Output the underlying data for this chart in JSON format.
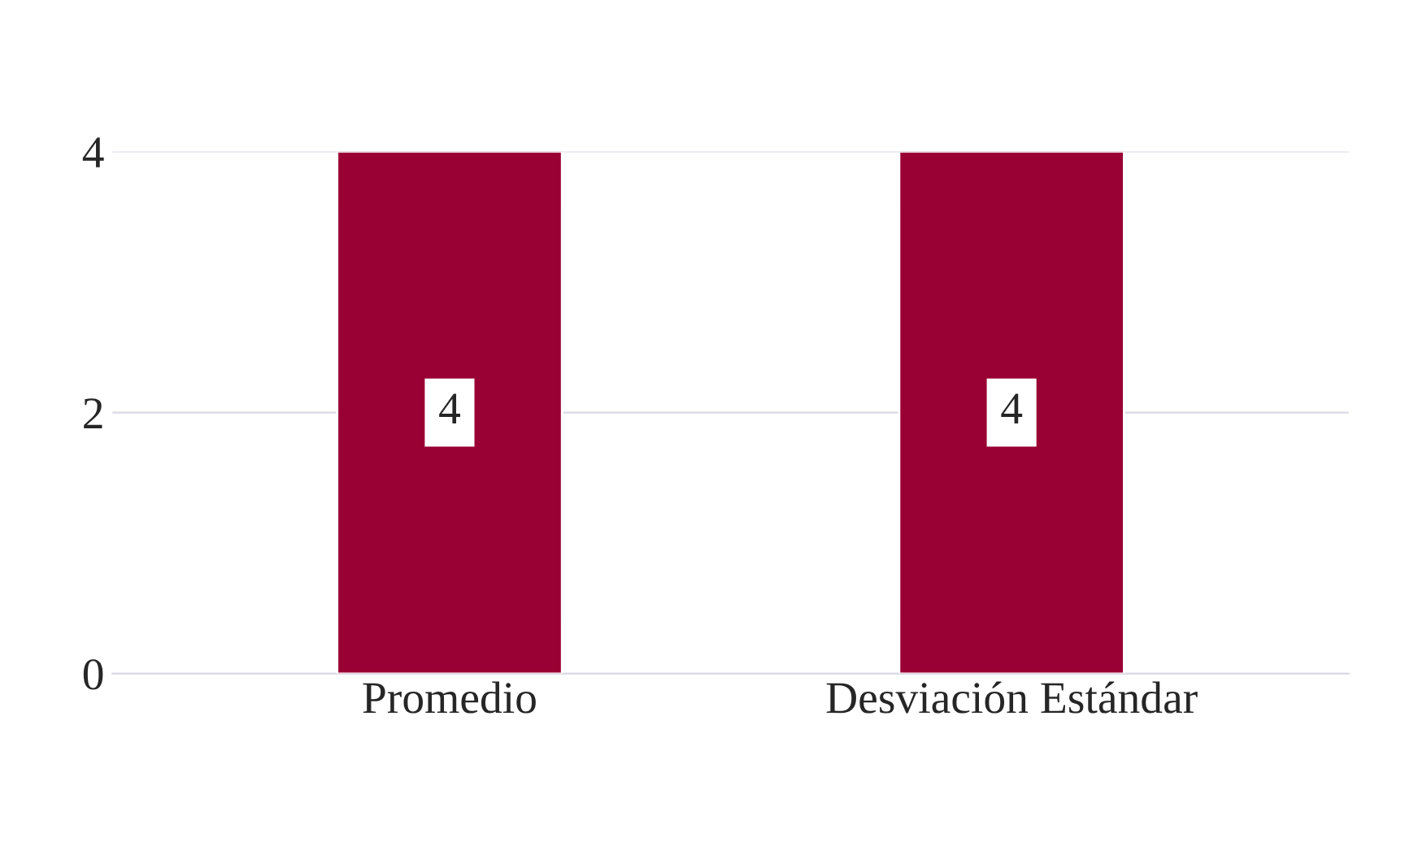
{
  "chart_data": {
    "type": "bar",
    "categories": [
      "Promedio",
      "Desviación Estándar"
    ],
    "values": [
      4,
      4
    ],
    "color": "#990033",
    "ylim": [
      0,
      4
    ],
    "yticks": [
      0,
      2,
      4
    ],
    "grid": "y",
    "data_labels": true
  }
}
